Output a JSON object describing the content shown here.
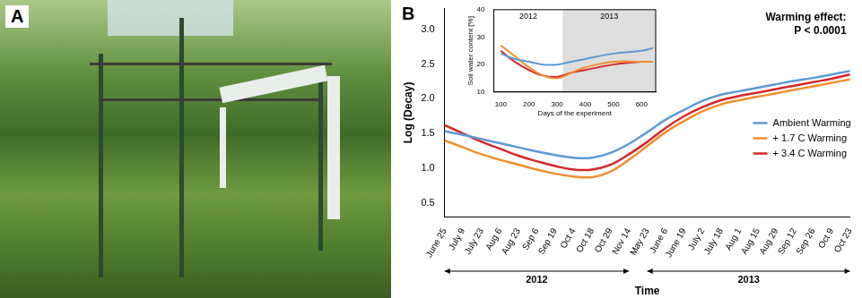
{
  "panel_a_label": "A",
  "chart_data": [
    {
      "type": "line",
      "panel_label": "B",
      "x_label": "Time",
      "y_label": "Log (Decay)",
      "categories": [
        "June 25",
        "July 9",
        "July 23",
        "Aug 6",
        "Aug 23",
        "Sep 6",
        "Sep 19",
        "Oct 4",
        "Oct 18",
        "Oct 29",
        "Nov 14",
        "May 23",
        "June 6",
        "June 19",
        "July 2",
        "July 18",
        "Aug 1",
        "Aug 15",
        "Aug 29",
        "Sep 12",
        "Sep 26",
        "Oct 9",
        "Oct 23"
      ],
      "series": [
        {
          "name": "Ambient Warming",
          "color": "#5b9bd5",
          "values": [
            1.53,
            1.48,
            1.42,
            1.36,
            1.3,
            1.24,
            1.19,
            1.15,
            1.15,
            1.22,
            1.35,
            1.52,
            1.7,
            1.84,
            1.97,
            2.06,
            2.11,
            2.16,
            2.21,
            2.26,
            2.3,
            2.35,
            2.4
          ]
        },
        {
          "name": "+ 1.7 C Warming",
          "color": "#f28e2b",
          "values": [
            1.4,
            1.3,
            1.2,
            1.12,
            1.05,
            0.98,
            0.92,
            0.88,
            0.87,
            0.95,
            1.12,
            1.32,
            1.52,
            1.68,
            1.82,
            1.92,
            1.98,
            2.03,
            2.08,
            2.13,
            2.18,
            2.23,
            2.28
          ]
        },
        {
          "name": "+ 3.4 C Warming",
          "color": "#d62728",
          "values": [
            1.62,
            1.5,
            1.38,
            1.28,
            1.18,
            1.1,
            1.03,
            0.98,
            0.98,
            1.05,
            1.2,
            1.38,
            1.58,
            1.75,
            1.88,
            1.98,
            2.04,
            2.09,
            2.14,
            2.19,
            2.24,
            2.29,
            2.35
          ]
        }
      ],
      "ylim": [
        0.3,
        3.3
      ],
      "yticks": [
        0.5,
        {
          "value": 1,
          "label": "1.0"
        },
        1.5,
        {
          "value": 2,
          "label": "2.0"
        },
        2.5,
        {
          "value": 3,
          "label": "3.0"
        }
      ],
      "annotation": [
        "Warming effect:",
        "P < 0.0001"
      ],
      "periods": [
        {
          "label": "2012",
          "from": "June 25",
          "to": "Nov 14"
        },
        {
          "label": "2013",
          "from": "May 23",
          "to": "Oct 23"
        }
      ],
      "legend": "right",
      "grid": false
    },
    {
      "type": "line",
      "x_label": "Days of the experiment",
      "y_label": "Soil water content [%]",
      "x": [
        100,
        150,
        200,
        250,
        300,
        350,
        400,
        500,
        600,
        640
      ],
      "series": [
        {
          "name": "Ambient Warming",
          "color": "#5b9bd5",
          "values": [
            24,
            22,
            21,
            20,
            20,
            21,
            22,
            24,
            25,
            26
          ]
        },
        {
          "name": "+ 1.7 C Warming",
          "color": "#f28e2b",
          "values": [
            27,
            23,
            19,
            16,
            15,
            17,
            19,
            21,
            21,
            21
          ]
        },
        {
          "name": "+ 3.4 C Warming",
          "color": "#d62728",
          "values": [
            25,
            21,
            18,
            16,
            15.5,
            17,
            18,
            20,
            21,
            21
          ]
        }
      ],
      "xlim": [
        75,
        650
      ],
      "xticks": [
        100,
        200,
        300,
        400,
        500,
        600
      ],
      "ylim": [
        10,
        40
      ],
      "yticks": [
        10,
        20,
        30,
        40
      ],
      "periods": [
        {
          "label": "2012",
          "from": 75,
          "to": 320,
          "color": "#ffffff"
        },
        {
          "label": "2013",
          "from": 320,
          "to": 650,
          "color": "#dedede"
        }
      ],
      "grid": false
    }
  ]
}
